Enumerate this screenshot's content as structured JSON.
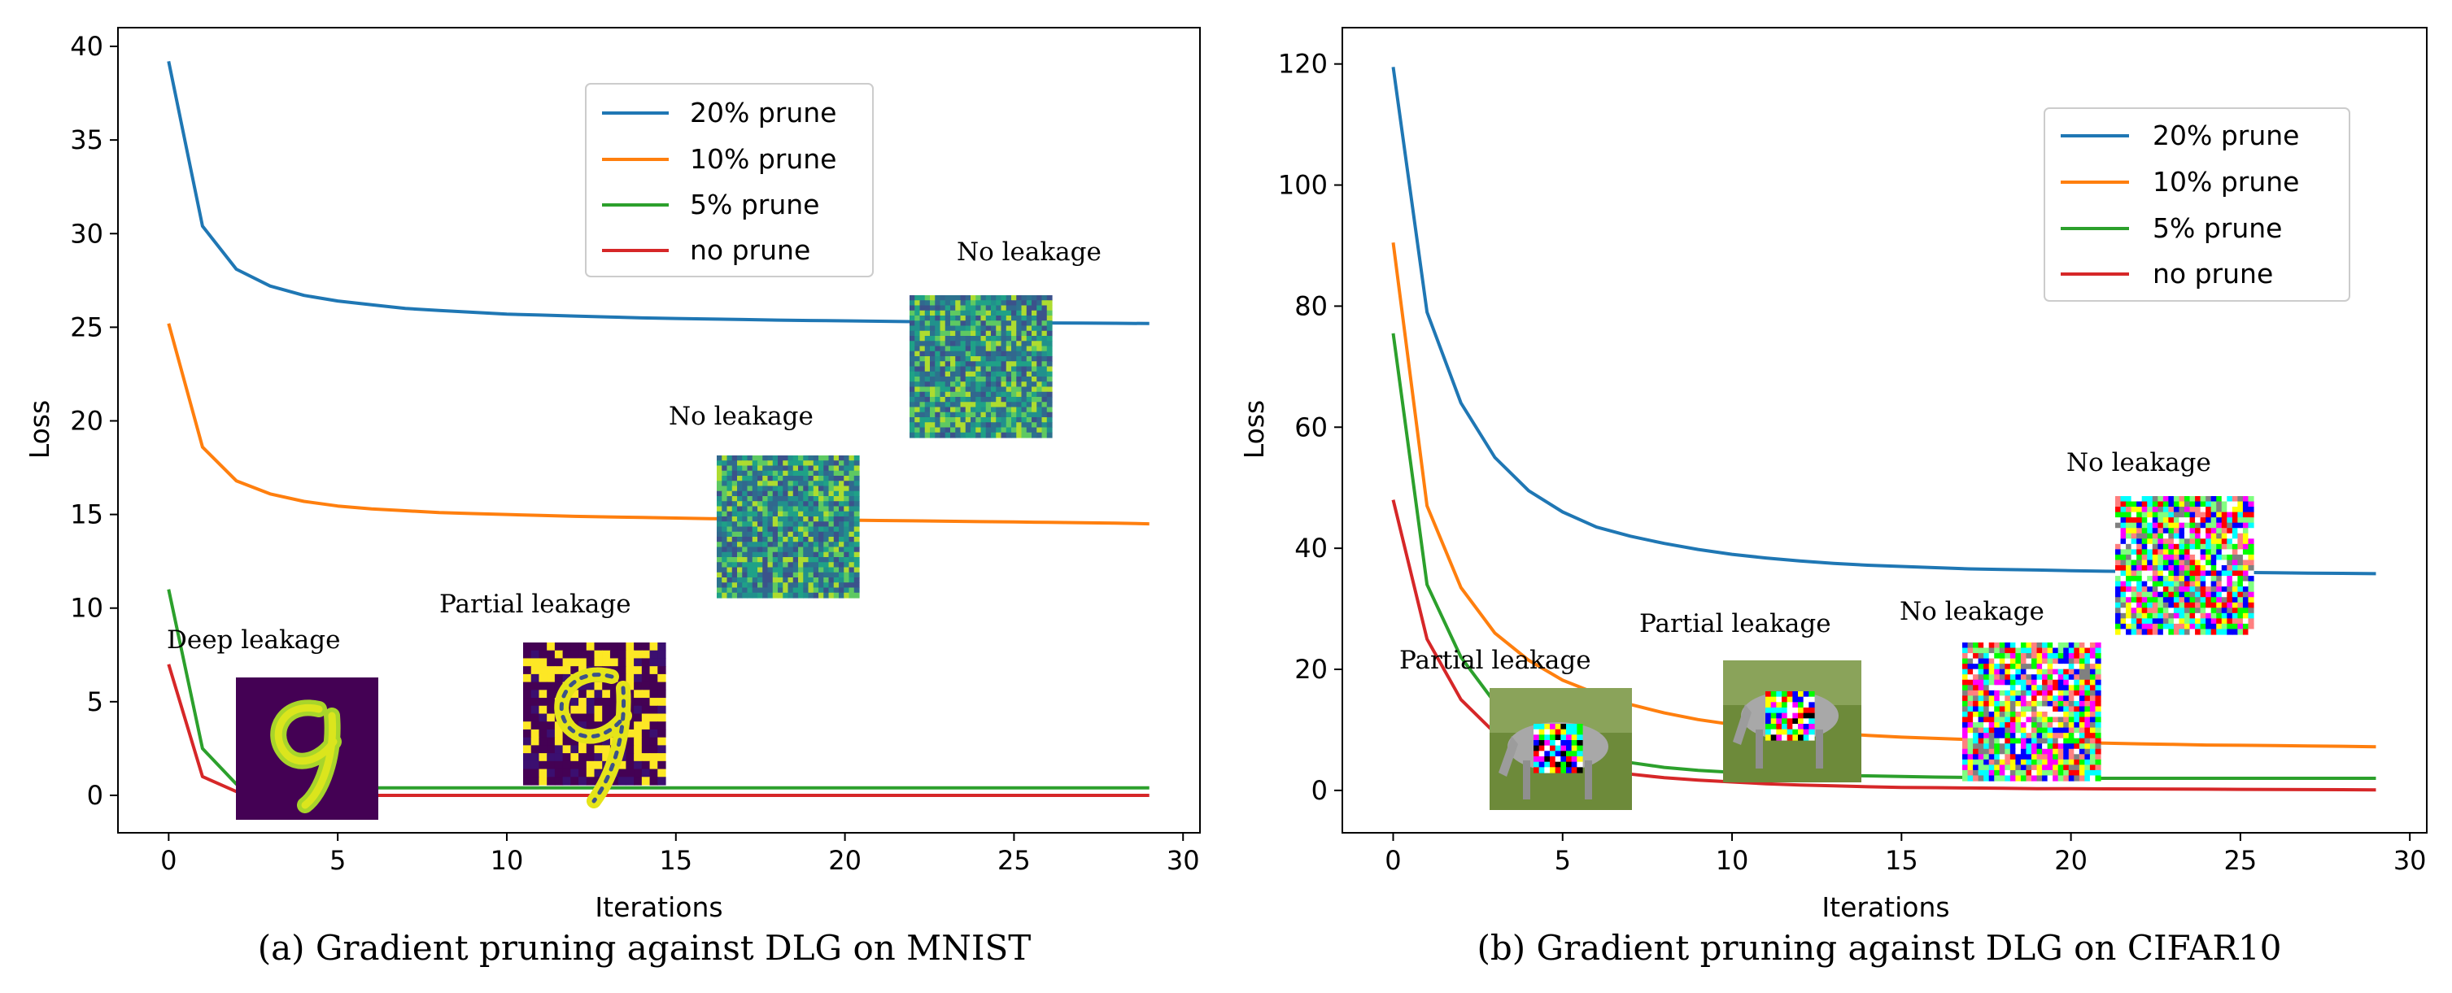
{
  "chart_data": [
    {
      "type": "line",
      "caption": "(a) Gradient pruning against DLG on MNIST",
      "xlabel": "Iterations",
      "ylabel": "Loss",
      "xlim": [
        -1.5,
        30.5
      ],
      "ylim": [
        -2,
        41
      ],
      "xticks": [
        0,
        5,
        10,
        15,
        20,
        25,
        30
      ],
      "yticks": [
        0,
        5,
        10,
        15,
        20,
        25,
        30,
        35,
        40
      ],
      "legend_position": "top-center",
      "x": [
        0,
        1,
        2,
        3,
        4,
        5,
        6,
        7,
        8,
        9,
        10,
        11,
        12,
        13,
        14,
        15,
        16,
        17,
        18,
        19,
        20,
        21,
        22,
        23,
        24,
        25,
        26,
        27,
        28,
        29
      ],
      "series": [
        {
          "name": "20% prune",
          "color": "#1f77b4",
          "values": [
            39.2,
            30.4,
            28.1,
            27.2,
            26.7,
            26.4,
            26.2,
            26.0,
            25.9,
            25.8,
            25.7,
            25.65,
            25.6,
            25.55,
            25.5,
            25.47,
            25.44,
            25.41,
            25.38,
            25.36,
            25.34,
            25.32,
            25.3,
            25.29,
            25.27,
            25.25,
            25.23,
            25.22,
            25.21,
            25.2
          ]
        },
        {
          "name": "10% prune",
          "color": "#ff7f0e",
          "values": [
            25.2,
            18.6,
            16.8,
            16.1,
            15.7,
            15.45,
            15.3,
            15.2,
            15.1,
            15.05,
            15.0,
            14.95,
            14.9,
            14.87,
            14.84,
            14.81,
            14.78,
            14.76,
            14.74,
            14.72,
            14.7,
            14.68,
            14.66,
            14.64,
            14.62,
            14.6,
            14.58,
            14.56,
            14.54,
            14.5
          ]
        },
        {
          "name": "5% prune",
          "color": "#2ca02c",
          "values": [
            11.0,
            2.5,
            0.6,
            0.5,
            0.45,
            0.42,
            0.4,
            0.4,
            0.4,
            0.4,
            0.4,
            0.4,
            0.4,
            0.4,
            0.4,
            0.4,
            0.4,
            0.4,
            0.4,
            0.4,
            0.4,
            0.4,
            0.4,
            0.4,
            0.4,
            0.4,
            0.4,
            0.4,
            0.4,
            0.4
          ]
        },
        {
          "name": "no prune",
          "color": "#d62728",
          "values": [
            7.0,
            1.0,
            0.2,
            0.05,
            0.02,
            0.01,
            0,
            0,
            0,
            0,
            0,
            0,
            0,
            0,
            0,
            0,
            0,
            0,
            0,
            0,
            0,
            0,
            0,
            0,
            0,
            0,
            0,
            0,
            0,
            0
          ]
        }
      ],
      "annotations": [
        {
          "text": "Deep leakage",
          "image": "mnist-digit-9-reconstruction"
        },
        {
          "text": "Partial leakage",
          "image": "mnist-digit-9-noisy-reconstruction"
        },
        {
          "text": "No leakage",
          "image": "mnist-noise-reconstruction"
        },
        {
          "text": "No leakage",
          "image": "mnist-noise-reconstruction"
        }
      ]
    },
    {
      "type": "line",
      "caption": "(b) Gradient pruning against DLG on CIFAR10",
      "xlabel": "Iterations",
      "ylabel": "Loss",
      "xlim": [
        -1.5,
        30.5
      ],
      "ylim": [
        -7,
        126
      ],
      "xticks": [
        0,
        5,
        10,
        15,
        20,
        25,
        30
      ],
      "yticks": [
        0,
        20,
        40,
        60,
        80,
        100,
        120
      ],
      "legend_position": "top-right",
      "x": [
        0,
        1,
        2,
        3,
        4,
        5,
        6,
        7,
        8,
        9,
        10,
        11,
        12,
        13,
        14,
        15,
        16,
        17,
        18,
        19,
        20,
        21,
        22,
        23,
        24,
        25,
        26,
        27,
        28,
        29
      ],
      "series": [
        {
          "name": "20% prune",
          "color": "#1f77b4",
          "values": [
            119.5,
            79,
            64,
            55,
            49.5,
            46,
            43.5,
            42,
            40.8,
            39.8,
            39,
            38.4,
            37.9,
            37.5,
            37.2,
            37.0,
            36.8,
            36.6,
            36.5,
            36.4,
            36.3,
            36.2,
            36.15,
            36.1,
            36.05,
            36.0,
            35.95,
            35.9,
            35.85,
            35.8
          ]
        },
        {
          "name": "10% prune",
          "color": "#ff7f0e",
          "values": [
            90.5,
            47,
            33.5,
            26,
            21.5,
            18.2,
            16,
            14.2,
            12.8,
            11.7,
            10.9,
            10.3,
            9.8,
            9.4,
            9.1,
            8.8,
            8.6,
            8.4,
            8.2,
            8.05,
            7.9,
            7.8,
            7.7,
            7.6,
            7.5,
            7.45,
            7.4,
            7.35,
            7.3,
            7.2
          ]
        },
        {
          "name": "5% prune",
          "color": "#2ca02c",
          "values": [
            75.5,
            34,
            22,
            14.5,
            10,
            7.3,
            5.6,
            4.6,
            3.8,
            3.3,
            3.0,
            2.8,
            2.6,
            2.5,
            2.4,
            2.3,
            2.2,
            2.15,
            2.1,
            2.05,
            2.0,
            2.0,
            2.0,
            2.0,
            2.0,
            2.0,
            2.0,
            2.0,
            2.0,
            2.0
          ]
        },
        {
          "name": "no prune",
          "color": "#d62728",
          "values": [
            48,
            25,
            15,
            9.5,
            6.3,
            4.5,
            3.4,
            2.7,
            2.1,
            1.7,
            1.4,
            1.1,
            0.9,
            0.75,
            0.6,
            0.5,
            0.45,
            0.4,
            0.35,
            0.3,
            0.28,
            0.26,
            0.24,
            0.22,
            0.2,
            0.18,
            0.16,
            0.14,
            0.12,
            0.1
          ]
        }
      ],
      "annotations": [
        {
          "text": "Partial leakage",
          "image": "cifar-horse-partial-reconstruction"
        },
        {
          "text": "Partial leakage",
          "image": "cifar-horse-partial-reconstruction"
        },
        {
          "text": "No leakage",
          "image": "cifar-noise-reconstruction"
        },
        {
          "text": "No leakage",
          "image": "cifar-noise-reconstruction"
        }
      ]
    }
  ]
}
